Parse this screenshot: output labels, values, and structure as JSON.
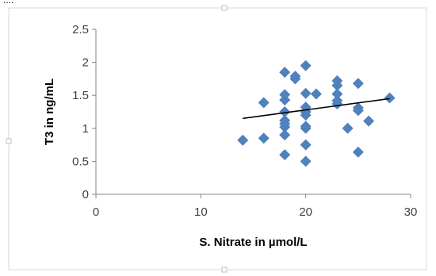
{
  "chart_data": {
    "type": "scatter",
    "title": "",
    "xlabel": "S. Nitrate in µmol/L",
    "ylabel": "T3 in ng/mL",
    "xlim": [
      0,
      30
    ],
    "ylim": [
      0,
      2.5
    ],
    "x_ticks": [
      "0",
      "10",
      "20",
      "30"
    ],
    "y_ticks": [
      "0",
      "0.5",
      "1",
      "1.5",
      "2",
      "2.5"
    ],
    "grid": false,
    "legend": "none",
    "marker": "diamond",
    "marker_color": "#4f81bd",
    "trendline": {
      "type": "linear",
      "color": "#000000",
      "from": [
        14,
        1.15
      ],
      "to": [
        28,
        1.45
      ]
    },
    "series": [
      {
        "points": [
          [
            14,
            0.82
          ],
          [
            16,
            0.85
          ],
          [
            16,
            1.39
          ],
          [
            18,
            0.6
          ],
          [
            18,
            0.9
          ],
          [
            18,
            1.02
          ],
          [
            18,
            1.07
          ],
          [
            18,
            1.12
          ],
          [
            18,
            1.25
          ],
          [
            18,
            1.43
          ],
          [
            18,
            1.51
          ],
          [
            18,
            1.85
          ],
          [
            19,
            1.75
          ],
          [
            19,
            1.79
          ],
          [
            20,
            0.5
          ],
          [
            20,
            0.75
          ],
          [
            20,
            1.0
          ],
          [
            20,
            1.03
          ],
          [
            20,
            1.2
          ],
          [
            20,
            1.25
          ],
          [
            20,
            1.32
          ],
          [
            20,
            1.53
          ],
          [
            20,
            1.95
          ],
          [
            21,
            1.52
          ],
          [
            23,
            1.37
          ],
          [
            23,
            1.42
          ],
          [
            23,
            1.52
          ],
          [
            23,
            1.65
          ],
          [
            23,
            1.72
          ],
          [
            24,
            1.0
          ],
          [
            25,
            0.64
          ],
          [
            25,
            1.27
          ],
          [
            25,
            1.31
          ],
          [
            25,
            1.68
          ],
          [
            26,
            1.11
          ],
          [
            28,
            1.46
          ]
        ]
      }
    ]
  },
  "page": {
    "top_fragment": "...."
  }
}
